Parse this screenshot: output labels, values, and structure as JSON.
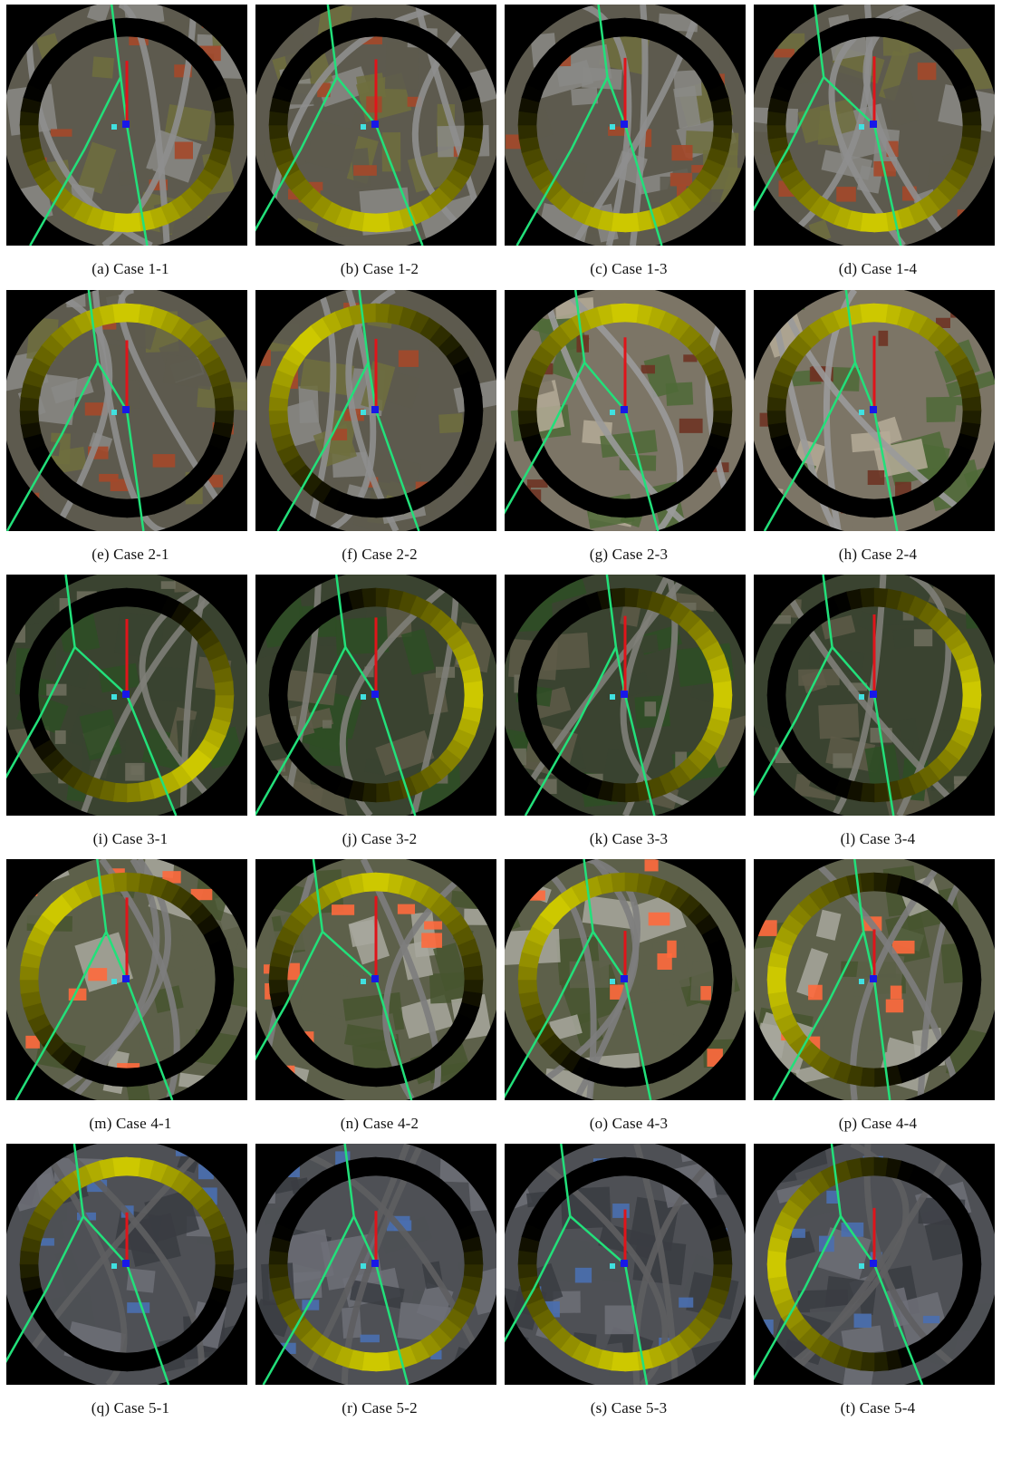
{
  "figure": {
    "panels": [
      {
        "caption": "(a)  Case  1-1",
        "ring_highlight": "bottom",
        "palette": "farm"
      },
      {
        "caption": "(b)  Case  1-2",
        "ring_highlight": "bottom",
        "palette": "farm"
      },
      {
        "caption": "(c)  Case  1-3",
        "ring_highlight": "bottom",
        "palette": "farm"
      },
      {
        "caption": "(d)  Case  1-4",
        "ring_highlight": "bottom",
        "palette": "farm"
      },
      {
        "caption": "(e)  Case  2-1",
        "ring_highlight": "top",
        "palette": "farm"
      },
      {
        "caption": "(f)  Case  2-2",
        "ring_highlight": "top-left",
        "palette": "farm"
      },
      {
        "caption": "(g)  Case  2-3",
        "ring_highlight": "top",
        "palette": "field"
      },
      {
        "caption": "(h)  Case  2-4",
        "ring_highlight": "top",
        "palette": "field"
      },
      {
        "caption": "(i)  Case  3-1",
        "ring_highlight": "bottom-right",
        "palette": "forest"
      },
      {
        "caption": "(j)  Case  3-2",
        "ring_highlight": "right",
        "palette": "forest"
      },
      {
        "caption": "(k)  Case  3-3",
        "ring_highlight": "right",
        "palette": "forest"
      },
      {
        "caption": "(l)  Case  3-4",
        "ring_highlight": "right",
        "palette": "forest"
      },
      {
        "caption": "(m)  Case  4-1",
        "ring_highlight": "top-left",
        "palette": "lot"
      },
      {
        "caption": "(n)  Case  4-2",
        "ring_highlight": "top",
        "palette": "lot"
      },
      {
        "caption": "(o)  Case  4-3",
        "ring_highlight": "top-left",
        "palette": "lot"
      },
      {
        "caption": "(p)  Case  4-4",
        "ring_highlight": "left",
        "palette": "lot"
      },
      {
        "caption": "(q)  Case  5-1",
        "ring_highlight": "top",
        "palette": "urban"
      },
      {
        "caption": "(r)  Case  5-2",
        "ring_highlight": "bottom",
        "palette": "urban"
      },
      {
        "caption": "(s)  Case  5-3",
        "ring_highlight": "bottom",
        "palette": "urban"
      },
      {
        "caption": "(t)  Case  5-4",
        "ring_highlight": "left",
        "palette": "urban"
      }
    ]
  },
  "colors": {
    "ring_dark": "#000000",
    "ring_highlight": "#d4cf00",
    "path_green": "#22e07a",
    "path_red": "#e0141a",
    "marker_blue": "#1818e8",
    "marker_cyan": "#40e0e0",
    "marker_white": "#f4f4f4",
    "outer_mask": "#000000",
    "palettes": {
      "farm": {
        "ground": "#5d5a4e",
        "patch1": "#6e6e3e",
        "patch2": "#8a8a86",
        "roof": "#a4482a",
        "road": "#8e8e8e"
      },
      "field": {
        "ground": "#7c7566",
        "patch1": "#b5ac98",
        "patch2": "#4f6a37",
        "roof": "#6e3424",
        "road": "#9a9a9a"
      },
      "forest": {
        "ground": "#3a4330",
        "patch1": "#5e5a48",
        "patch2": "#2e4d25",
        "roof": "#6d6d5c",
        "road": "#7e7e78"
      },
      "lot": {
        "ground": "#5d604a",
        "patch1": "#a8a89e",
        "patch2": "#47552f",
        "roof": "#ff6a3d",
        "road": "#7d7d7d"
      },
      "urban": {
        "ground": "#4e5055",
        "patch1": "#3a3c42",
        "patch2": "#6e7078",
        "roof": "#4a6fb0",
        "road": "#5e5e60"
      }
    }
  }
}
